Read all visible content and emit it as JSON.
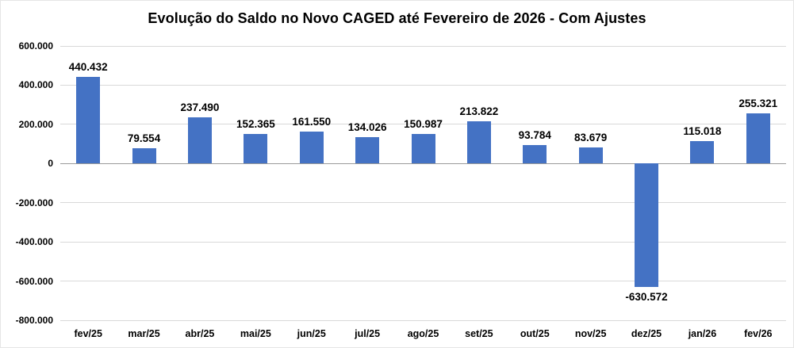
{
  "chart_data": {
    "type": "bar",
    "title": "Evolução do Saldo no Novo CAGED até Fevereiro de 2026 - Com Ajustes",
    "categories": [
      "fev/25",
      "mar/25",
      "abr/25",
      "mai/25",
      "jun/25",
      "jul/25",
      "ago/25",
      "set/25",
      "out/25",
      "nov/25",
      "dez/25",
      "jan/26",
      "fev/26"
    ],
    "values": [
      440432,
      79554,
      237490,
      152365,
      161550,
      134026,
      150987,
      213822,
      93784,
      83679,
      -630572,
      115018,
      255321
    ],
    "value_labels": [
      "440.432",
      "79.554",
      "237.490",
      "152.365",
      "161.550",
      "134.026",
      "150.987",
      "213.822",
      "93.784",
      "83.679",
      "-630.572",
      "115.018",
      "255.321"
    ],
    "ylabel": "",
    "xlabel": "",
    "ylim": [
      -800000,
      600000
    ],
    "ytick_step": 200000,
    "ytick_labels": [
      "600.000",
      "400.000",
      "200.000",
      "0",
      "-200.000",
      "-400.000",
      "-600.000",
      "-800.000"
    ],
    "grid": true,
    "legend_position": "none",
    "bar_color": "#4472C4",
    "gridline_color": "#d9d9d9",
    "zero_axis_color": "#9b9b9b",
    "text_color": "#000000"
  }
}
